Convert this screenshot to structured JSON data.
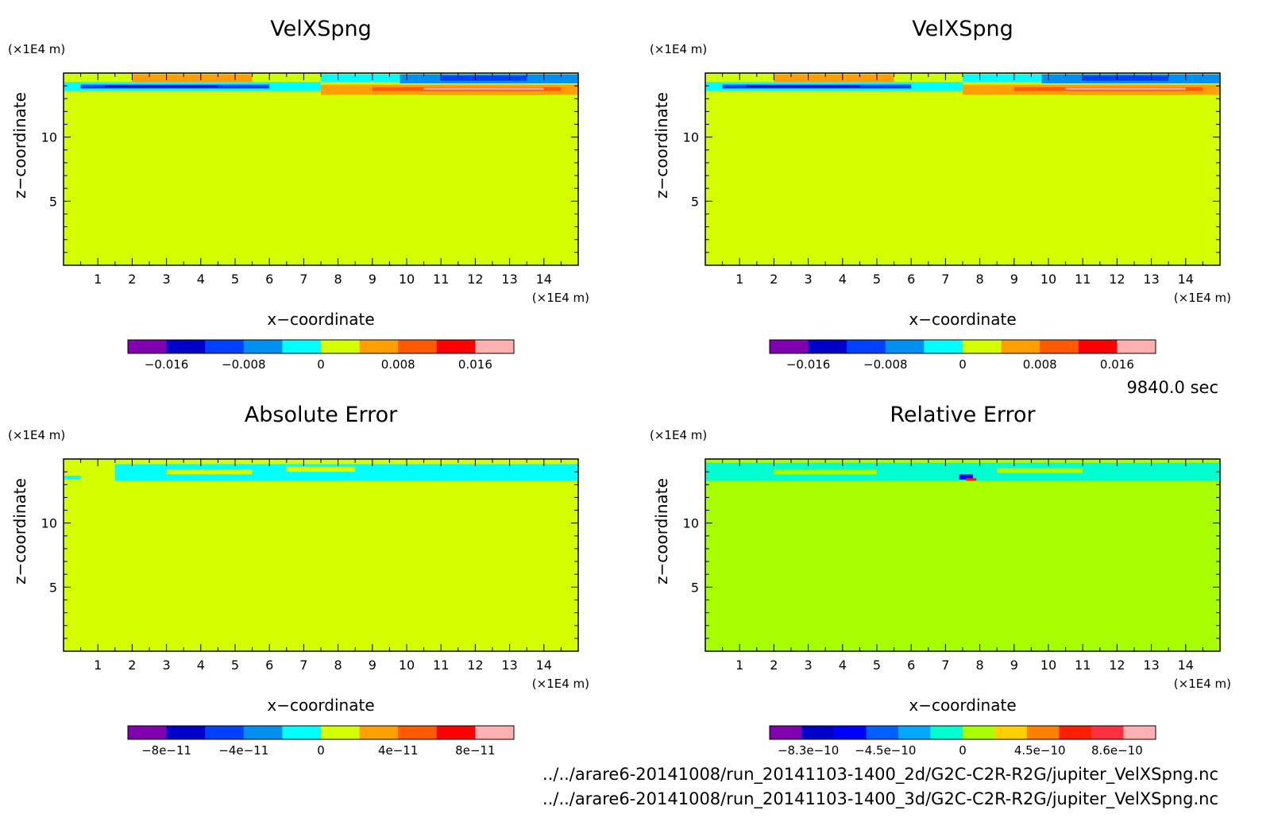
{
  "time_label": "9840.0 sec",
  "footer_lines": [
    "../../arare6-20141008/run_20141103-1400_2d/G2C-C2R-R2G/jupiter_VelXSpng.nc",
    "../../arare6-20141008/run_20141103-1400_3d/G2C-C2R-R2G/jupiter_VelXSpng.nc"
  ],
  "chart_data": [
    {
      "type": "heatmap",
      "title": "VelXSpng",
      "xlabel": "x−coordinate",
      "ylabel": "z−coordinate",
      "x_unit": "(×1E4 m)",
      "y_unit": "(×1E4 m)",
      "x_ticks": [
        1,
        2,
        3,
        4,
        5,
        6,
        7,
        8,
        9,
        10,
        11,
        12,
        13,
        14
      ],
      "y_ticks": [
        5,
        10
      ],
      "xlim": [
        0,
        15
      ],
      "ylim": [
        0,
        15
      ],
      "background_color": "#d3ff00",
      "colorbar": {
        "colors": [
          "#8000b0",
          "#0000c8",
          "#0040ff",
          "#0090f0",
          "#00ffff",
          "#d3ff00",
          "#ffa000",
          "#ff5a00",
          "#ff0000",
          "#ffb0b0"
        ],
        "tick_labels": [
          "−0.016",
          "−0.008",
          "0",
          "0.008",
          "0.016"
        ]
      },
      "field_bands": [
        {
          "x0": 0,
          "x1": 15,
          "y0": 13.0,
          "y1": 15.0,
          "color": "#d3ff00"
        },
        {
          "x0": 0,
          "x1": 7.5,
          "y0": 13.6,
          "y1": 14.3,
          "color": "#00ffff"
        },
        {
          "x0": 0.5,
          "x1": 6.0,
          "y0": 13.8,
          "y1": 14.1,
          "color": "#0040ff"
        },
        {
          "x0": 1.2,
          "x1": 4.5,
          "y0": 13.9,
          "y1": 14.05,
          "color": "#0000c8"
        },
        {
          "x0": 2.0,
          "x1": 5.5,
          "y0": 14.3,
          "y1": 14.9,
          "color": "#ffa000"
        },
        {
          "x0": 7.5,
          "x1": 15,
          "y0": 13.3,
          "y1": 14.1,
          "color": "#ffa000"
        },
        {
          "x0": 9.0,
          "x1": 14.5,
          "y0": 13.6,
          "y1": 13.9,
          "color": "#ff5a00"
        },
        {
          "x0": 10.5,
          "x1": 14.0,
          "y0": 13.7,
          "y1": 13.85,
          "color": "#ffb0b0"
        },
        {
          "x0": 9.8,
          "x1": 15,
          "y0": 14.2,
          "y1": 14.9,
          "color": "#0090f0"
        },
        {
          "x0": 11.0,
          "x1": 13.5,
          "y0": 14.4,
          "y1": 14.8,
          "color": "#0040ff"
        },
        {
          "x0": 7.5,
          "x1": 9.8,
          "y0": 14.3,
          "y1": 14.9,
          "color": "#00ffff"
        }
      ]
    },
    {
      "type": "heatmap",
      "title": "VelXSpng",
      "xlabel": "x−coordinate",
      "ylabel": "z−coordinate",
      "x_unit": "(×1E4 m)",
      "y_unit": "(×1E4 m)",
      "x_ticks": [
        1,
        2,
        3,
        4,
        5,
        6,
        7,
        8,
        9,
        10,
        11,
        12,
        13,
        14
      ],
      "y_ticks": [
        5,
        10
      ],
      "xlim": [
        0,
        15
      ],
      "ylim": [
        0,
        15
      ],
      "background_color": "#d3ff00",
      "colorbar": {
        "colors": [
          "#8000b0",
          "#0000c8",
          "#0040ff",
          "#0090f0",
          "#00ffff",
          "#d3ff00",
          "#ffa000",
          "#ff5a00",
          "#ff0000",
          "#ffb0b0"
        ],
        "tick_labels": [
          "−0.016",
          "−0.008",
          "0",
          "0.008",
          "0.016"
        ]
      },
      "field_bands": [
        {
          "x0": 0,
          "x1": 15,
          "y0": 13.0,
          "y1": 15.0,
          "color": "#d3ff00"
        },
        {
          "x0": 0,
          "x1": 7.5,
          "y0": 13.6,
          "y1": 14.3,
          "color": "#00ffff"
        },
        {
          "x0": 0.5,
          "x1": 6.0,
          "y0": 13.8,
          "y1": 14.1,
          "color": "#0040ff"
        },
        {
          "x0": 1.2,
          "x1": 4.5,
          "y0": 13.9,
          "y1": 14.05,
          "color": "#0000c8"
        },
        {
          "x0": 2.0,
          "x1": 5.5,
          "y0": 14.3,
          "y1": 14.9,
          "color": "#ffa000"
        },
        {
          "x0": 7.5,
          "x1": 15,
          "y0": 13.3,
          "y1": 14.1,
          "color": "#ffa000"
        },
        {
          "x0": 9.0,
          "x1": 14.5,
          "y0": 13.6,
          "y1": 13.9,
          "color": "#ff5a00"
        },
        {
          "x0": 10.5,
          "x1": 14.0,
          "y0": 13.7,
          "y1": 13.85,
          "color": "#ffb0b0"
        },
        {
          "x0": 9.8,
          "x1": 15,
          "y0": 14.2,
          "y1": 14.9,
          "color": "#0090f0"
        },
        {
          "x0": 11.0,
          "x1": 13.5,
          "y0": 14.4,
          "y1": 14.8,
          "color": "#0040ff"
        },
        {
          "x0": 7.5,
          "x1": 9.8,
          "y0": 14.3,
          "y1": 14.9,
          "color": "#00ffff"
        }
      ]
    },
    {
      "type": "heatmap",
      "title": "Absolute Error",
      "xlabel": "x−coordinate",
      "ylabel": "z−coordinate",
      "x_unit": "(×1E4 m)",
      "y_unit": "(×1E4 m)",
      "x_ticks": [
        1,
        2,
        3,
        4,
        5,
        6,
        7,
        8,
        9,
        10,
        11,
        12,
        13,
        14
      ],
      "y_ticks": [
        5,
        10
      ],
      "xlim": [
        0,
        15
      ],
      "ylim": [
        0,
        15
      ],
      "background_color": "#d3ff00",
      "colorbar": {
        "colors": [
          "#8000b0",
          "#0000c8",
          "#0040ff",
          "#0090f0",
          "#00ffff",
          "#d3ff00",
          "#ffa000",
          "#ff5a00",
          "#ff0000",
          "#ffb0b0"
        ],
        "tick_labels": [
          "−8e−11",
          "−4e−11",
          "0",
          "4e−11",
          "8e−11"
        ]
      },
      "field_bands": [
        {
          "x0": 1.5,
          "x1": 15,
          "y0": 13.3,
          "y1": 14.6,
          "color": "#00ffff"
        },
        {
          "x0": 3.0,
          "x1": 5.5,
          "y0": 13.8,
          "y1": 14.2,
          "color": "#d3ff00"
        },
        {
          "x0": 6.5,
          "x1": 8.5,
          "y0": 14.0,
          "y1": 14.4,
          "color": "#d3ff00"
        },
        {
          "x0": 0,
          "x1": 0.5,
          "y0": 13.4,
          "y1": 13.7,
          "color": "#00ffff"
        }
      ]
    },
    {
      "type": "heatmap",
      "title": "Relative Error",
      "xlabel": "x−coordinate",
      "ylabel": "z−coordinate",
      "x_unit": "(×1E4 m)",
      "y_unit": "(×1E4 m)",
      "x_ticks": [
        1,
        2,
        3,
        4,
        5,
        6,
        7,
        8,
        9,
        10,
        11,
        12,
        13,
        14
      ],
      "y_ticks": [
        5,
        10
      ],
      "xlim": [
        0,
        15
      ],
      "ylim": [
        0,
        15
      ],
      "background_color": "#a8ff00",
      "colorbar": {
        "colors": [
          "#8000b0",
          "#0000c8",
          "#0000ff",
          "#0060ff",
          "#00a8ff",
          "#00ffd0",
          "#a8ff00",
          "#ffd000",
          "#ff8000",
          "#ff2000",
          "#ff3040",
          "#ffb0b0"
        ],
        "tick_labels": [
          "−8.3e−10",
          "−4.5e−10",
          "0",
          "4.5e−10",
          "8.6e−10"
        ]
      },
      "field_bands": [
        {
          "x0": 0,
          "x1": 15,
          "y0": 13.3,
          "y1": 14.7,
          "color": "#00ffd0"
        },
        {
          "x0": 2.0,
          "x1": 5.0,
          "y0": 13.8,
          "y1": 14.2,
          "color": "#a8ff00"
        },
        {
          "x0": 8.5,
          "x1": 11.0,
          "y0": 13.9,
          "y1": 14.3,
          "color": "#a8ff00"
        },
        {
          "x0": 7.4,
          "x1": 7.8,
          "y0": 13.4,
          "y1": 13.8,
          "color": "#0000ff"
        },
        {
          "x0": 7.6,
          "x1": 7.9,
          "y0": 13.3,
          "y1": 13.5,
          "color": "#ff2000"
        }
      ]
    }
  ]
}
